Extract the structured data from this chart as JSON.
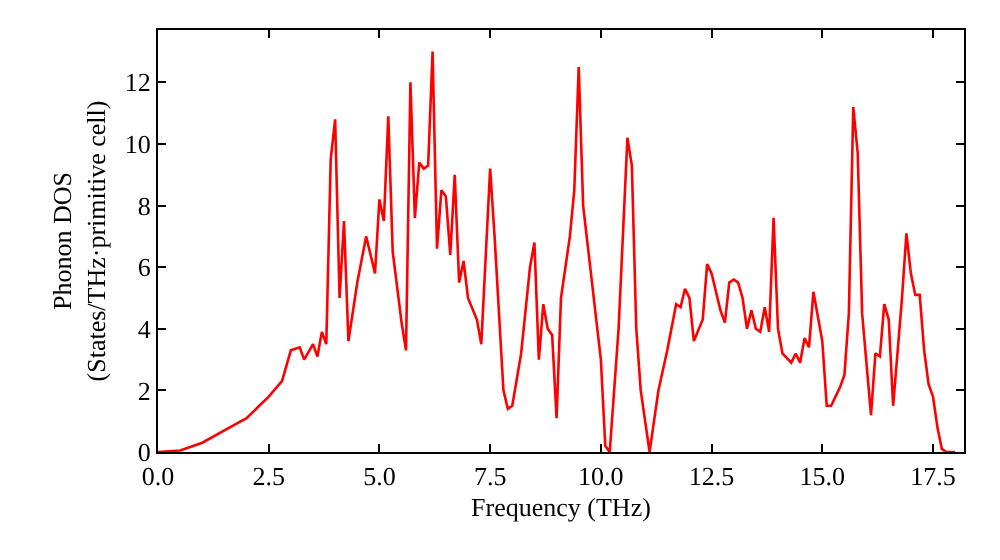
{
  "chart_data": {
    "type": "line",
    "xlabel": "Frequency (THz)",
    "ylabel": "Phonon DOS\n(States/THz·primitive cell)",
    "xlim": [
      0,
      18.2
    ],
    "ylim": [
      0,
      13.7
    ],
    "xticks": [
      {
        "value": 0,
        "label": "0.0"
      },
      {
        "value": 2.5,
        "label": "2.5"
      },
      {
        "value": 5,
        "label": "5.0"
      },
      {
        "value": 7.5,
        "label": "7.5"
      },
      {
        "value": 10,
        "label": "10.0"
      },
      {
        "value": 12.5,
        "label": "12.5"
      },
      {
        "value": 15,
        "label": "15.0"
      },
      {
        "value": 17.5,
        "label": "17.5"
      }
    ],
    "yticks": [
      0,
      2,
      4,
      6,
      8,
      10,
      12
    ],
    "marker": "none",
    "line_style": "solid",
    "x": [
      0,
      0.5,
      1,
      1.5,
      2,
      2.5,
      2.8,
      3.0,
      3.2,
      3.3,
      3.5,
      3.6,
      3.7,
      3.8,
      3.9,
      4.0,
      4.1,
      4.2,
      4.3,
      4.5,
      4.7,
      4.9,
      5.0,
      5.1,
      5.2,
      5.3,
      5.5,
      5.6,
      5.7,
      5.8,
      5.9,
      6.0,
      6.1,
      6.2,
      6.3,
      6.4,
      6.5,
      6.6,
      6.7,
      6.8,
      6.9,
      7.0,
      7.2,
      7.3,
      7.5,
      7.6,
      7.8,
      7.9,
      8.0,
      8.2,
      8.4,
      8.5,
      8.6,
      8.7,
      8.8,
      8.9,
      9.0,
      9.1,
      9.3,
      9.4,
      9.5,
      9.6,
      9.8,
      10.0,
      10.1,
      10.2,
      10.4,
      10.6,
      10.7,
      10.8,
      10.9,
      11.1,
      11.3,
      11.5,
      11.7,
      11.8,
      11.9,
      12.0,
      12.1,
      12.3,
      12.4,
      12.5,
      12.6,
      12.7,
      12.8,
      12.9,
      13.0,
      13.1,
      13.2,
      13.3,
      13.4,
      13.5,
      13.6,
      13.7,
      13.8,
      13.9,
      14.0,
      14.1,
      14.3,
      14.4,
      14.5,
      14.6,
      14.7,
      14.8,
      15.0,
      15.1,
      15.2,
      15.4,
      15.5,
      15.6,
      15.7,
      15.8,
      15.9,
      16.1,
      16.2,
      16.3,
      16.4,
      16.5,
      16.6,
      16.8,
      16.9,
      17.0,
      17.1,
      17.2,
      17.3,
      17.4,
      17.5,
      17.6,
      17.7,
      17.8,
      18.0
    ],
    "series": [
      {
        "color": "#ff0000",
        "values": [
          0,
          0.05,
          0.3,
          0.7,
          1.1,
          1.8,
          2.3,
          3.3,
          3.4,
          3.0,
          3.5,
          3.1,
          3.9,
          3.5,
          9.5,
          10.8,
          5.0,
          7.5,
          3.6,
          5.5,
          7.0,
          5.8,
          8.2,
          7.5,
          10.9,
          6.5,
          4.2,
          3.3,
          12.0,
          7.6,
          9.4,
          9.2,
          9.3,
          13.0,
          6.6,
          8.5,
          8.3,
          6.4,
          9.0,
          5.5,
          6.2,
          5.0,
          4.3,
          3.5,
          9.2,
          7.0,
          2.0,
          1.4,
          1.5,
          3.2,
          6.0,
          6.8,
          3.0,
          4.8,
          4.0,
          3.8,
          1.1,
          5.0,
          7.0,
          8.5,
          12.5,
          8.0,
          5.5,
          3.0,
          0.2,
          0.0,
          4.0,
          10.2,
          9.3,
          4.0,
          2.0,
          0.0,
          2.0,
          3.3,
          4.8,
          4.7,
          5.3,
          5.0,
          3.6,
          4.3,
          6.1,
          5.8,
          5.2,
          4.6,
          4.2,
          5.5,
          5.6,
          5.5,
          5.0,
          4.0,
          4.6,
          4.0,
          3.9,
          4.7,
          3.9,
          7.6,
          4.0,
          3.2,
          2.9,
          3.2,
          2.9,
          3.7,
          3.4,
          5.2,
          3.6,
          1.5,
          1.5,
          2.1,
          2.5,
          4.5,
          11.2,
          9.7,
          4.5,
          1.2,
          3.2,
          3.1,
          4.8,
          4.3,
          1.5,
          5.0,
          7.1,
          5.8,
          5.1,
          5.1,
          3.3,
          2.2,
          1.8,
          0.8,
          0.1,
          0,
          0
        ]
      }
    ]
  }
}
